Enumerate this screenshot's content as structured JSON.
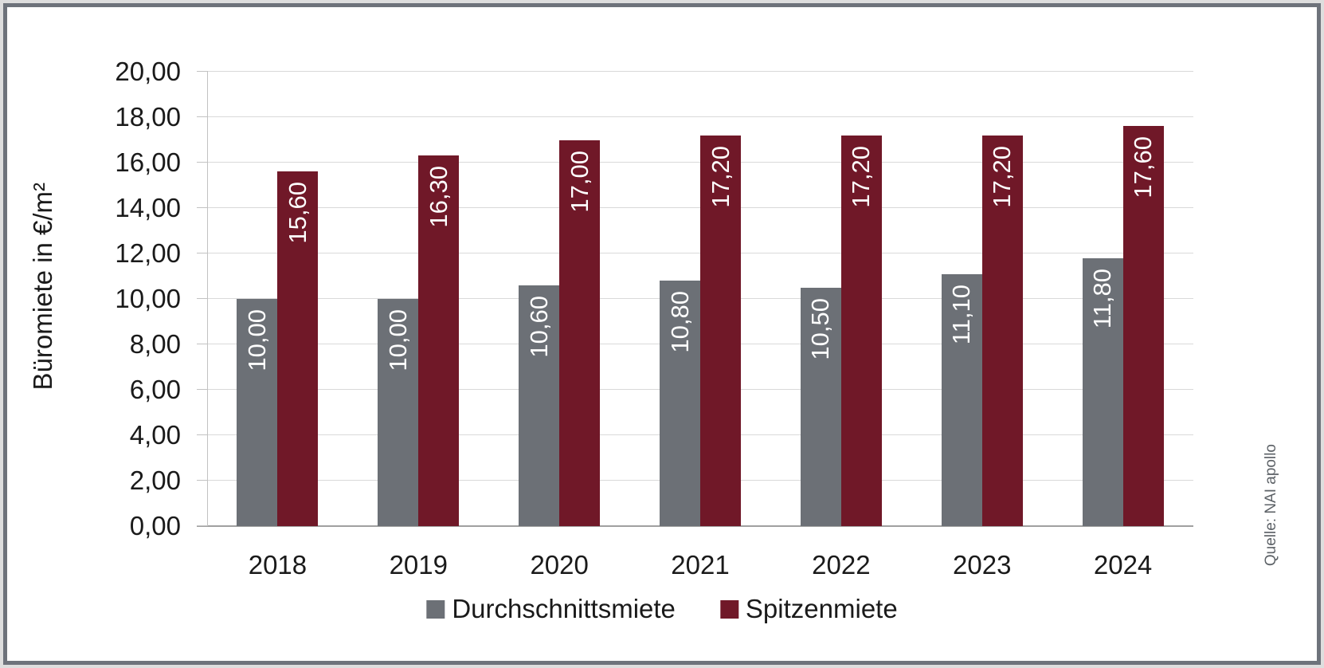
{
  "colors": {
    "bar_average": "#6c7076",
    "bar_prime": "#701828",
    "gridline": "#d9d9d9",
    "axis_line": "#a0a0a0",
    "bar_label_text": "#ffffff",
    "axis_text": "#1a1a1a",
    "source_text": "#5d6267",
    "frame_border": "#6e737b"
  },
  "chart_data": {
    "type": "bar",
    "categories": [
      "2018",
      "2019",
      "2020",
      "2021",
      "2022",
      "2023",
      "2024"
    ],
    "series": [
      {
        "name": "Durchschnittsmiete",
        "color": "#6c7076",
        "values": [
          10.0,
          10.0,
          10.6,
          10.8,
          10.5,
          11.1,
          11.8
        ],
        "labels": [
          "10,00",
          "10,00",
          "10,60",
          "10,80",
          "10,50",
          "11,10",
          "11,80"
        ]
      },
      {
        "name": "Spitzenmiete",
        "color": "#701828",
        "values": [
          15.6,
          16.3,
          17.0,
          17.2,
          17.2,
          17.2,
          17.6
        ],
        "labels": [
          "15,60",
          "16,30",
          "17,00",
          "17,20",
          "17,20",
          "17,20",
          "17,60"
        ]
      }
    ],
    "title": "",
    "xlabel": "",
    "ylabel": "Büromiete in €/m²",
    "ylim": [
      0,
      20
    ],
    "ytick_step": 2,
    "ytick_labels": [
      "0,00",
      "2,00",
      "4,00",
      "6,00",
      "8,00",
      "10,00",
      "12,00",
      "14,00",
      "16,00",
      "18,00",
      "20,00"
    ],
    "grid": true,
    "legend_position": "bottom",
    "value_labels_rotated": true
  },
  "legend": {
    "items": [
      {
        "label": "Durchschnittsmiete",
        "color": "#6c7076"
      },
      {
        "label": "Spitzenmiete",
        "color": "#701828"
      }
    ]
  },
  "source": {
    "label": "Quelle: NAI apollo"
  }
}
